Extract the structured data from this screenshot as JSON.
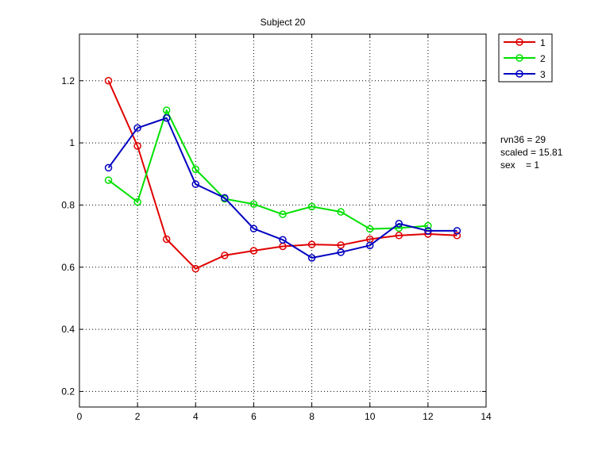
{
  "chart_data": {
    "type": "line",
    "title": "Subject 20",
    "xlabel": "",
    "ylabel": "",
    "xlim": [
      0,
      14
    ],
    "ylim": [
      0.15,
      1.35
    ],
    "xticks": [
      0,
      2,
      4,
      6,
      8,
      10,
      12,
      14
    ],
    "yticks": [
      0.2,
      0.4,
      0.6,
      0.8,
      1,
      1.2
    ],
    "xtick_labels": [
      "0",
      "2",
      "4",
      "6",
      "8",
      "10",
      "12",
      "14"
    ],
    "ytick_labels": [
      "0.2",
      "0.4",
      "0.6",
      "0.8",
      "1",
      "1.2"
    ],
    "grid": true,
    "legend_position": "outside-right-top",
    "series": [
      {
        "name": "1",
        "color": "#e00000",
        "x": [
          1,
          2,
          3,
          4,
          5,
          6,
          7,
          8,
          9,
          10,
          11,
          12,
          13
        ],
        "y": [
          1.2,
          0.99,
          0.69,
          0.595,
          0.638,
          0.653,
          0.667,
          0.673,
          0.671,
          0.69,
          0.702,
          0.707,
          0.702
        ]
      },
      {
        "name": "2",
        "color": "#00e000",
        "x": [
          1,
          2,
          3,
          4,
          5,
          6,
          7,
          8,
          9,
          10,
          11,
          12
        ],
        "y": [
          0.88,
          0.81,
          1.105,
          0.915,
          0.82,
          0.803,
          0.77,
          0.795,
          0.778,
          0.723,
          0.726,
          0.733
        ]
      },
      {
        "name": "3",
        "color": "#0000c0",
        "x": [
          1,
          2,
          3,
          4,
          5,
          6,
          7,
          8,
          9,
          10,
          11,
          12,
          13
        ],
        "y": [
          0.92,
          1.048,
          1.08,
          0.867,
          0.823,
          0.724,
          0.688,
          0.63,
          0.648,
          0.67,
          0.74,
          0.717,
          0.717
        ]
      }
    ],
    "annotations": [
      "rvn36 = 29",
      "scaled = 15.81",
      "sex    = 1"
    ]
  }
}
